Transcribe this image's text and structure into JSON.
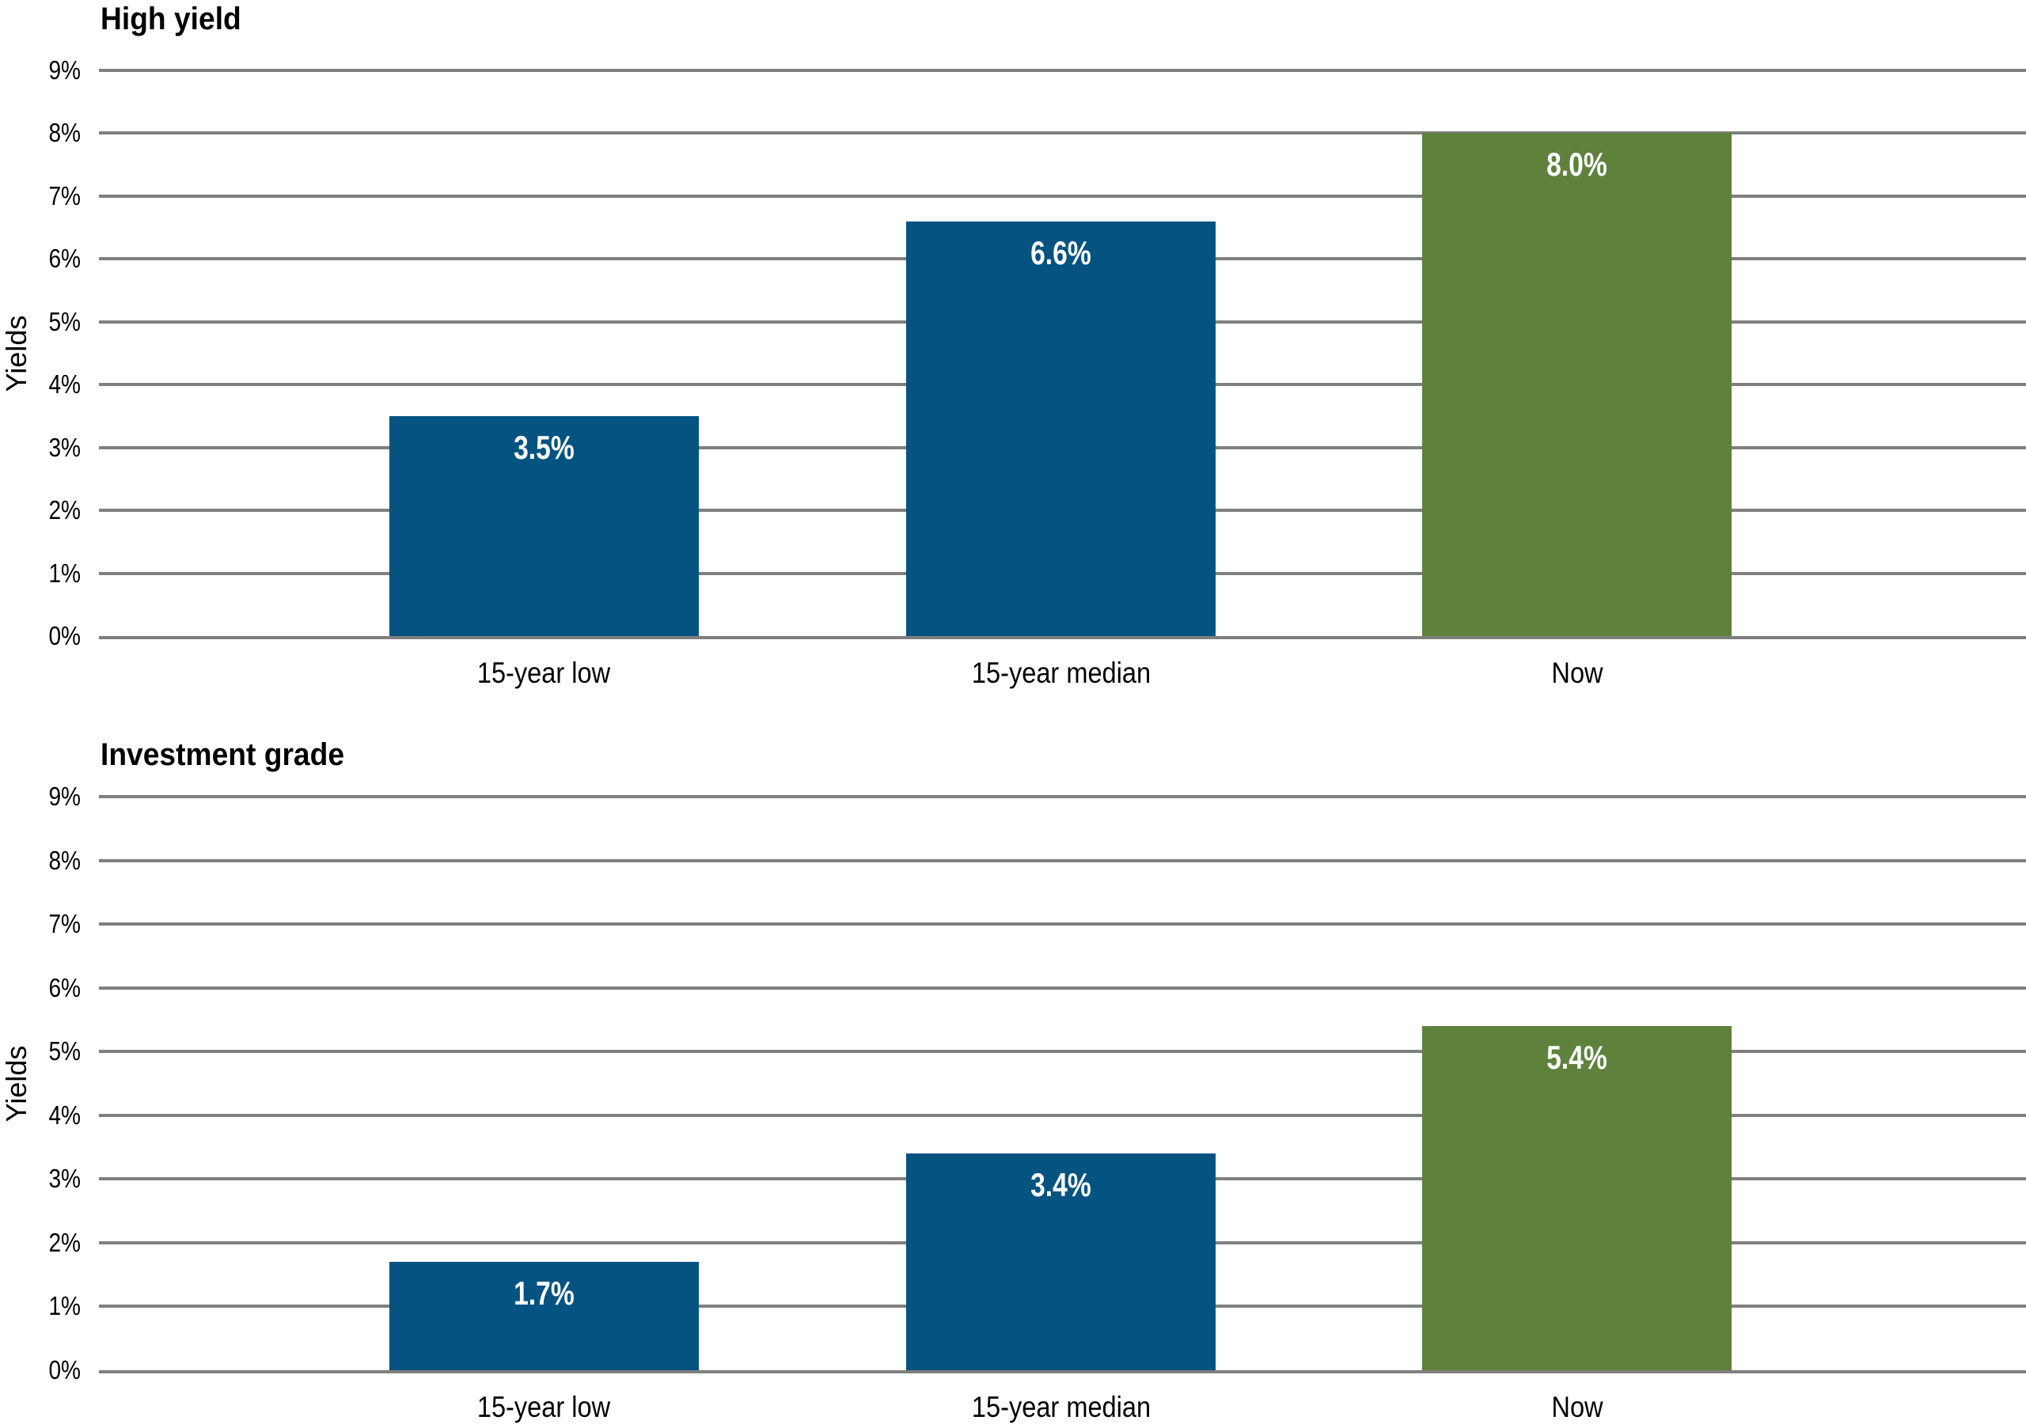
{
  "style": {
    "background": "#ffffff",
    "bar_blue": "#045381",
    "bar_green": "#5E813C",
    "gridline_color": "#7f7f7f",
    "value_label_color": "#ffffff",
    "text_color": "#000000"
  },
  "chart_data": [
    {
      "type": "bar",
      "title": "High yield",
      "ylabel": "Yields",
      "xlabel": "",
      "categories": [
        "15-year low",
        "15-year median",
        "Now"
      ],
      "values": [
        3.5,
        6.6,
        8.0
      ],
      "value_labels": [
        "3.5%",
        "6.6%",
        "8.0%"
      ],
      "series_colors": [
        "#045381",
        "#045381",
        "#5E813C"
      ],
      "ylim": [
        0,
        9
      ],
      "ytick_labels": [
        "0%",
        "1%",
        "2%",
        "3%",
        "4%",
        "5%",
        "6%",
        "7%",
        "8%",
        "9%"
      ],
      "grid": true,
      "legend": "none"
    },
    {
      "type": "bar",
      "title": "Investment grade",
      "ylabel": "Yields",
      "xlabel": "",
      "categories": [
        "15-year low",
        "15-year median",
        "Now"
      ],
      "values": [
        1.7,
        3.4,
        5.4
      ],
      "value_labels": [
        "1.7%",
        "3.4%",
        "5.4%"
      ],
      "series_colors": [
        "#045381",
        "#045381",
        "#5E813C"
      ],
      "ylim": [
        0,
        9
      ],
      "ytick_labels": [
        "0%",
        "1%",
        "2%",
        "3%",
        "4%",
        "5%",
        "6%",
        "7%",
        "8%",
        "9%"
      ],
      "grid": true,
      "legend": "none"
    }
  ]
}
